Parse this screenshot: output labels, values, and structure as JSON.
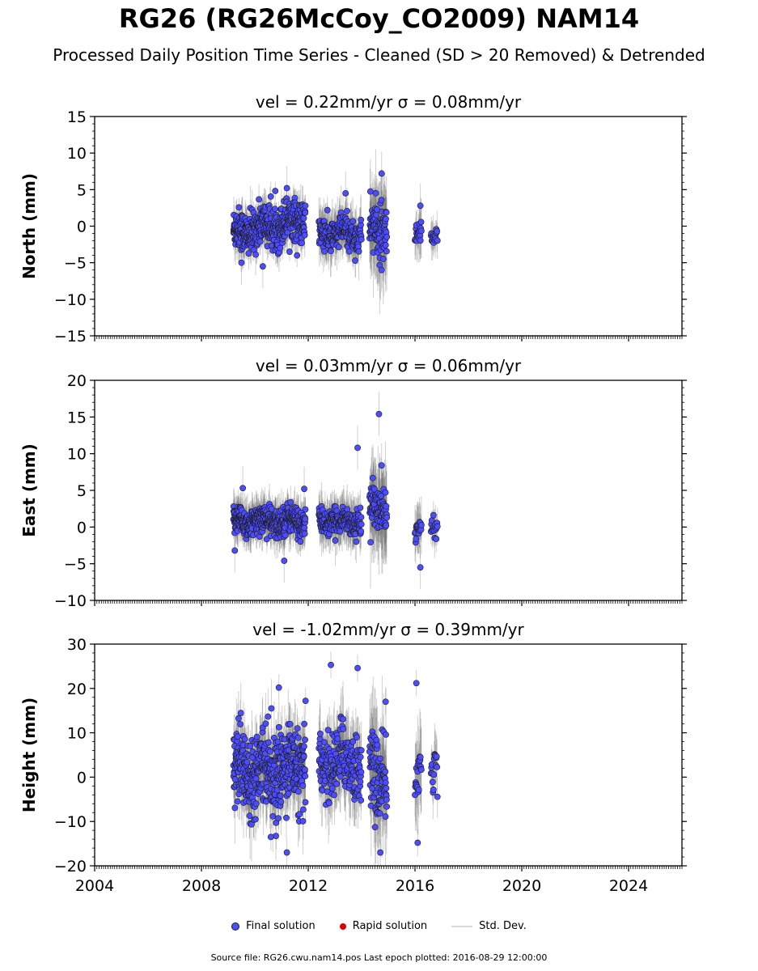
{
  "header": {
    "title": "RG26 (RG26McCoy_CO2009) NAM14",
    "subtitle": "Processed Daily Position Time Series - Cleaned (SD > 20 Removed) & Detrended"
  },
  "footer": {
    "source": "Source file: RG26.cwu.nam14.pos  Last epoch plotted: 2016-08-29 12:00:00"
  },
  "legend": {
    "items": [
      {
        "label": "Final solution",
        "color": "#4d4dff"
      },
      {
        "label": "Rapid solution",
        "color": "#e00000"
      },
      {
        "label": "Std. Dev.",
        "color": "#d9d9d9"
      }
    ]
  },
  "chart_data": [
    {
      "type": "scatter",
      "title": "vel = 0.22mm/yr   σ = 0.08mm/yr",
      "ylabel": "North (mm)",
      "xlim": [
        2004,
        2026
      ],
      "ylim": [
        -15,
        15
      ],
      "yticks": [
        -15,
        -10,
        -5,
        0,
        5,
        10,
        15
      ],
      "xticks": [
        2004,
        2008,
        2012,
        2016,
        2020,
        2024
      ],
      "grid": false,
      "series": [
        {
          "name": "Final solution",
          "segments": [
            {
              "x_range": [
                2009.2,
                2011.9
              ],
              "level": 0,
              "spread": 2.0,
              "trend": 1.0,
              "errbar": 2.2,
              "step": 0.006
            },
            {
              "x_range": [
                2012.4,
                2014.0
              ],
              "level": -1.0,
              "spread": 1.6,
              "trend": 0.0,
              "errbar": 2.8,
              "step": 0.008
            },
            {
              "x_range": [
                2014.3,
                2014.95
              ],
              "level": -0.5,
              "spread": 2.6,
              "trend": 0.0,
              "errbar": 5.0,
              "step": 0.007
            },
            {
              "x_range": [
                2016.0,
                2016.25
              ],
              "level": -1.5,
              "spread": 1.2,
              "trend": 0.0,
              "errbar": 3.0,
              "step": 0.012
            },
            {
              "x_range": [
                2016.6,
                2016.85
              ],
              "level": -1.5,
              "spread": 0.8,
              "trend": 0.0,
              "errbar": 2.0,
              "step": 0.015
            }
          ],
          "outliers": [
            [
              2011.2,
              5.2
            ],
            [
              2013.4,
              4.5
            ],
            [
              2014.75,
              7.2
            ],
            [
              2016.2,
              2.8
            ],
            [
              2010.3,
              -5.5
            ],
            [
              2014.75,
              -6.0
            ],
            [
              2009.5,
              -5.0
            ]
          ]
        }
      ]
    },
    {
      "type": "scatter",
      "title": "vel = 0.03mm/yr   σ = 0.06mm/yr",
      "ylabel": "East (mm)",
      "xlim": [
        2004,
        2026
      ],
      "ylim": [
        -10,
        20
      ],
      "yticks": [
        -10,
        -5,
        0,
        5,
        10,
        15,
        20
      ],
      "xticks": [
        2004,
        2008,
        2012,
        2016,
        2020,
        2024
      ],
      "grid": false,
      "series": [
        {
          "name": "Final solution",
          "segments": [
            {
              "x_range": [
                2009.2,
                2011.9
              ],
              "level": 0.8,
              "spread": 1.4,
              "trend": 0.0,
              "errbar": 2.2,
              "step": 0.006
            },
            {
              "x_range": [
                2012.4,
                2014.0
              ],
              "level": 0.8,
              "spread": 1.2,
              "trend": 0.0,
              "errbar": 2.6,
              "step": 0.008
            },
            {
              "x_range": [
                2014.3,
                2014.95
              ],
              "level": 2.5,
              "spread": 2.0,
              "trend": 0.0,
              "errbar": 5.0,
              "step": 0.007
            },
            {
              "x_range": [
                2016.0,
                2016.25
              ],
              "level": -0.5,
              "spread": 1.0,
              "trend": 0.0,
              "errbar": 3.0,
              "step": 0.012
            },
            {
              "x_range": [
                2016.6,
                2016.85
              ],
              "level": 0.0,
              "spread": 0.8,
              "trend": 0.0,
              "errbar": 2.0,
              "step": 0.015
            }
          ],
          "outliers": [
            [
              2014.65,
              15.4
            ],
            [
              2013.85,
              10.8
            ],
            [
              2014.75,
              8.4
            ],
            [
              2009.55,
              5.3
            ],
            [
              2011.85,
              5.2
            ],
            [
              2016.2,
              -5.5
            ],
            [
              2011.1,
              -4.6
            ],
            [
              2009.25,
              -3.2
            ]
          ]
        }
      ]
    },
    {
      "type": "scatter",
      "title": "vel = -1.02mm/yr   σ = 0.39mm/yr",
      "ylabel": "Height (mm)",
      "xlabel": "",
      "xlim": [
        2004,
        2026
      ],
      "ylim": [
        -20,
        30
      ],
      "yticks": [
        -20,
        -10,
        0,
        10,
        20,
        30
      ],
      "xticks": [
        2004,
        2008,
        2012,
        2016,
        2020,
        2024
      ],
      "grid": false,
      "series": [
        {
          "name": "Final solution",
          "segments": [
            {
              "x_range": [
                2009.2,
                2011.9
              ],
              "level": 2.0,
              "spread": 6.0,
              "trend": 0.0,
              "errbar": 6.0,
              "step": 0.006
            },
            {
              "x_range": [
                2012.4,
                2014.0
              ],
              "level": 3.5,
              "spread": 5.5,
              "trend": 0.0,
              "errbar": 7.0,
              "step": 0.008
            },
            {
              "x_range": [
                2014.3,
                2014.95
              ],
              "level": 0.0,
              "spread": 6.5,
              "trend": 0.0,
              "errbar": 10.0,
              "step": 0.007
            },
            {
              "x_range": [
                2016.0,
                2016.25
              ],
              "level": 0.0,
              "spread": 5.0,
              "trend": 0.0,
              "errbar": 8.0,
              "step": 0.012
            },
            {
              "x_range": [
                2016.6,
                2016.85
              ],
              "level": 3.0,
              "spread": 3.5,
              "trend": 0.0,
              "errbar": 5.0,
              "step": 0.015
            }
          ],
          "outliers": [
            [
              2012.85,
              25.3
            ],
            [
              2013.85,
              24.6
            ],
            [
              2016.05,
              21.2
            ],
            [
              2010.9,
              20.2
            ],
            [
              2011.9,
              17.2
            ],
            [
              2014.9,
              17.0
            ],
            [
              2011.2,
              -17.0
            ],
            [
              2014.7,
              -17.0
            ],
            [
              2016.1,
              -14.8
            ],
            [
              2010.6,
              -13.5
            ]
          ]
        }
      ]
    }
  ]
}
